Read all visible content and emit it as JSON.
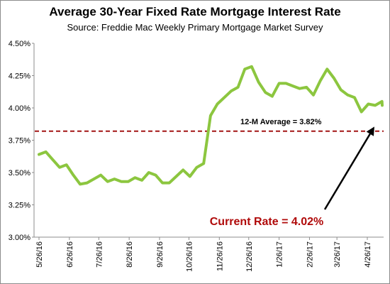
{
  "chart_data": {
    "type": "line",
    "title": "Average 30-Year Fixed Rate Mortgage Interest Rate",
    "subtitle": "Source: Freddie Mac Weekly Primary Mortgage Market Survey",
    "x_tick_labels": [
      "5/26/16",
      "6/26/16",
      "7/26/16",
      "8/26/16",
      "9/26/16",
      "10/26/16",
      "11/26/16",
      "12/26/16",
      "1/26/17",
      "2/26/17",
      "3/26/17",
      "4/26/17"
    ],
    "y_tick_labels": [
      "3.00%",
      "3.25%",
      "3.50%",
      "3.75%",
      "4.00%",
      "4.25%",
      "4.50%"
    ],
    "ylim": [
      3.0,
      4.5
    ],
    "grid": false,
    "series": [
      {
        "color": "#8cc63f",
        "x": [
          "5/26/16",
          "6/2/16",
          "6/9/16",
          "6/16/16",
          "6/23/16",
          "6/30/16",
          "7/7/16",
          "7/14/16",
          "7/21/16",
          "7/28/16",
          "8/4/16",
          "8/11/16",
          "8/18/16",
          "8/25/16",
          "9/1/16",
          "9/8/16",
          "9/15/16",
          "9/22/16",
          "9/29/16",
          "10/6/16",
          "10/13/16",
          "10/20/16",
          "10/27/16",
          "11/3/16",
          "11/10/16",
          "11/17/16",
          "11/24/16",
          "12/1/16",
          "12/8/16",
          "12/15/16",
          "12/22/16",
          "12/29/16",
          "1/5/17",
          "1/12/17",
          "1/19/17",
          "1/26/17",
          "2/2/17",
          "2/9/17",
          "2/16/17",
          "2/23/17",
          "3/2/17",
          "3/9/17",
          "3/16/17",
          "3/23/17",
          "3/30/17",
          "4/6/17",
          "4/13/17",
          "4/20/17",
          "4/27/17",
          "5/4/17",
          "5/11/17",
          "5/18/17"
        ],
        "values": [
          3.64,
          3.66,
          3.6,
          3.54,
          3.56,
          3.48,
          3.41,
          3.42,
          3.45,
          3.48,
          3.43,
          3.45,
          3.43,
          3.43,
          3.46,
          3.44,
          3.5,
          3.48,
          3.42,
          3.42,
          3.47,
          3.52,
          3.47,
          3.54,
          3.57,
          3.94,
          4.03,
          4.08,
          4.13,
          4.16,
          4.3,
          4.32,
          4.2,
          4.12,
          4.09,
          4.19,
          4.19,
          4.17,
          4.15,
          4.16,
          4.1,
          4.21,
          4.3,
          4.23,
          4.14,
          4.1,
          4.08,
          3.97,
          4.03,
          4.02,
          4.05,
          4.02
        ]
      },
      {
        "name": "12-M Average = 3.82%",
        "style": "dashed",
        "color": "#a31515",
        "values": [
          3.82
        ]
      }
    ],
    "annotations": [
      {
        "text": "12-M Average = 3.82%"
      },
      {
        "text": "Current Rate = 4.02%",
        "color": "#b00a0a",
        "arrow_to_value": 4.02
      }
    ]
  }
}
